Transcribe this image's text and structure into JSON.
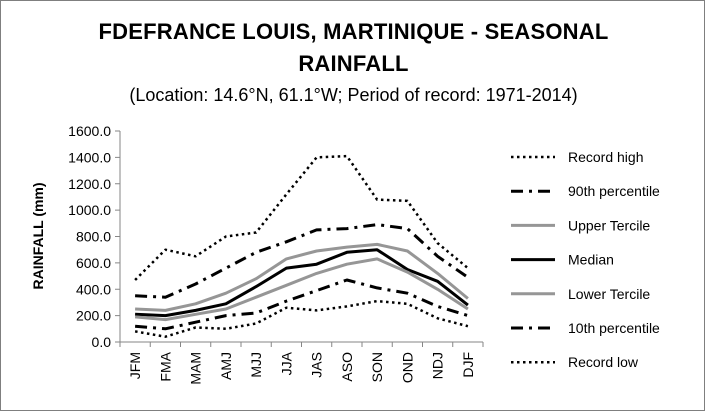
{
  "chart_data": {
    "type": "line",
    "title_line1": "FDEFRANCE LOUIS, MARTINIQUE - SEASONAL",
    "title_line2": "RAINFALL",
    "subtitle": "(Location: 14.6°N, 61.1°W; Period of record: 1971-2014)",
    "ylabel": "RAINFALL (mm)",
    "xlabel": "",
    "ylim": [
      0,
      1600
    ],
    "yticks": [
      "0.0",
      "200.0",
      "400.0",
      "600.0",
      "800.0",
      "1000.0",
      "1200.0",
      "1400.0",
      "1600.0"
    ],
    "categories": [
      "JFM",
      "FMA",
      "MAM",
      "AMJ",
      "MJJ",
      "JJA",
      "JAS",
      "ASO",
      "SON",
      "OND",
      "NDJ",
      "DJF"
    ],
    "legend_position": "right",
    "grid": false,
    "series": [
      {
        "name": "Record high",
        "style": "dotted",
        "color": "#000000",
        "values": [
          470,
          700,
          650,
          800,
          830,
          1120,
          1400,
          1410,
          1080,
          1070,
          750,
          560
        ]
      },
      {
        "name": "90th percentile",
        "style": "dashdot",
        "color": "#000000",
        "values": [
          350,
          340,
          440,
          560,
          680,
          760,
          850,
          860,
          890,
          860,
          650,
          490
        ]
      },
      {
        "name": "Upper Tercile",
        "style": "solid",
        "color": "#969696",
        "values": [
          250,
          240,
          290,
          370,
          480,
          630,
          690,
          720,
          740,
          690,
          520,
          330
        ]
      },
      {
        "name": "Median",
        "style": "solid",
        "color": "#000000",
        "values": [
          210,
          200,
          240,
          290,
          420,
          560,
          590,
          680,
          700,
          550,
          460,
          280
        ]
      },
      {
        "name": "Lower Tercile",
        "style": "solid",
        "color": "#969696",
        "values": [
          190,
          170,
          210,
          250,
          340,
          430,
          520,
          590,
          630,
          530,
          400,
          250
        ]
      },
      {
        "name": "10th percentile",
        "style": "dashdot",
        "color": "#000000",
        "values": [
          120,
          100,
          150,
          200,
          220,
          310,
          390,
          470,
          410,
          370,
          270,
          200
        ]
      },
      {
        "name": "Record low",
        "style": "dotted",
        "color": "#000000",
        "values": [
          80,
          40,
          110,
          100,
          140,
          260,
          240,
          270,
          310,
          290,
          180,
          120
        ]
      }
    ]
  }
}
